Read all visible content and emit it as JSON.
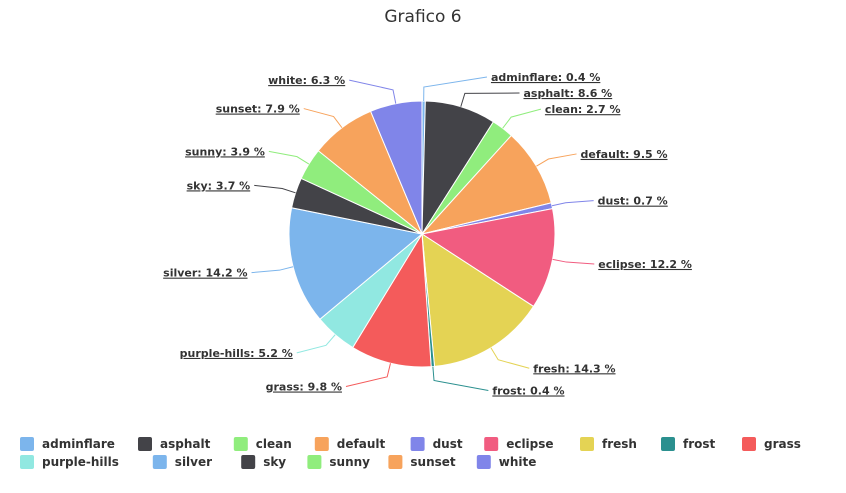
{
  "chart_data": {
    "type": "pie",
    "title": "Grafico 6",
    "label_suffix": " %",
    "legend_position": "bottom",
    "slices": [
      {
        "name": "adminflare",
        "value": 0.4,
        "color": "#7cb5ec"
      },
      {
        "name": "asphalt",
        "value": 8.6,
        "color": "#434348"
      },
      {
        "name": "clean",
        "value": 2.7,
        "color": "#90ed7d"
      },
      {
        "name": "default",
        "value": 9.5,
        "color": "#f7a35c"
      },
      {
        "name": "dust",
        "value": 0.7,
        "color": "#8085e9"
      },
      {
        "name": "eclipse",
        "value": 12.2,
        "color": "#f15c80"
      },
      {
        "name": "fresh",
        "value": 14.3,
        "color": "#e4d354"
      },
      {
        "name": "frost",
        "value": 0.4,
        "color": "#2b908f"
      },
      {
        "name": "grass",
        "value": 9.8,
        "color": "#f45b5b"
      },
      {
        "name": "purple-hills",
        "value": 5.2,
        "color": "#91e8e1"
      },
      {
        "name": "silver",
        "value": 14.2,
        "color": "#7cb5ec"
      },
      {
        "name": "sky",
        "value": 3.7,
        "color": "#434348"
      },
      {
        "name": "sunny",
        "value": 3.9,
        "color": "#90ed7d"
      },
      {
        "name": "sunset",
        "value": 7.9,
        "color": "#f7a35c"
      },
      {
        "name": "white",
        "value": 6.3,
        "color": "#8085e9"
      }
    ]
  }
}
